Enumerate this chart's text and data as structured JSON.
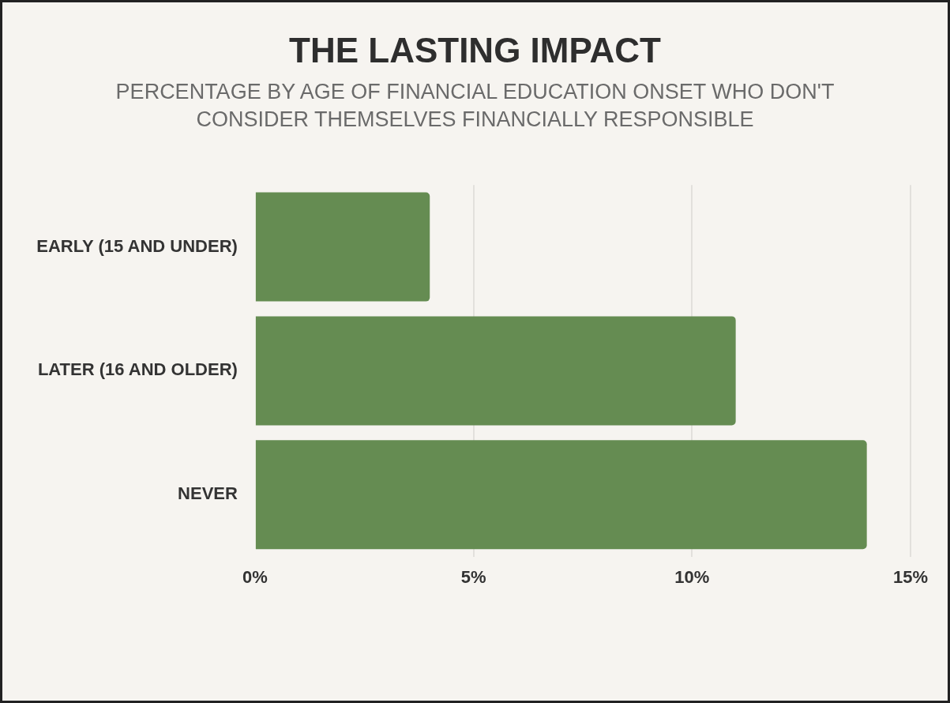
{
  "chart_data": {
    "type": "bar",
    "orientation": "horizontal",
    "title": "THE LASTING IMPACT",
    "subtitle": "PERCENTAGE BY AGE OF FINANCIAL EDUCATION ONSET WHO DON'T CONSIDER THEMSELVES FINANCIALLY RESPONSIBLE",
    "categories": [
      "EARLY (15 AND UNDER)",
      "LATER (16 AND OLDER)",
      "NEVER"
    ],
    "values": [
      4,
      11,
      14
    ],
    "color": "#658c52",
    "xlim": [
      0,
      15
    ],
    "xticks": [
      {
        "value": 0,
        "label": "0%"
      },
      {
        "value": 5,
        "label": "5%"
      },
      {
        "value": 10,
        "label": "10%"
      },
      {
        "value": 15,
        "label": "15%"
      }
    ],
    "grid": "x"
  }
}
